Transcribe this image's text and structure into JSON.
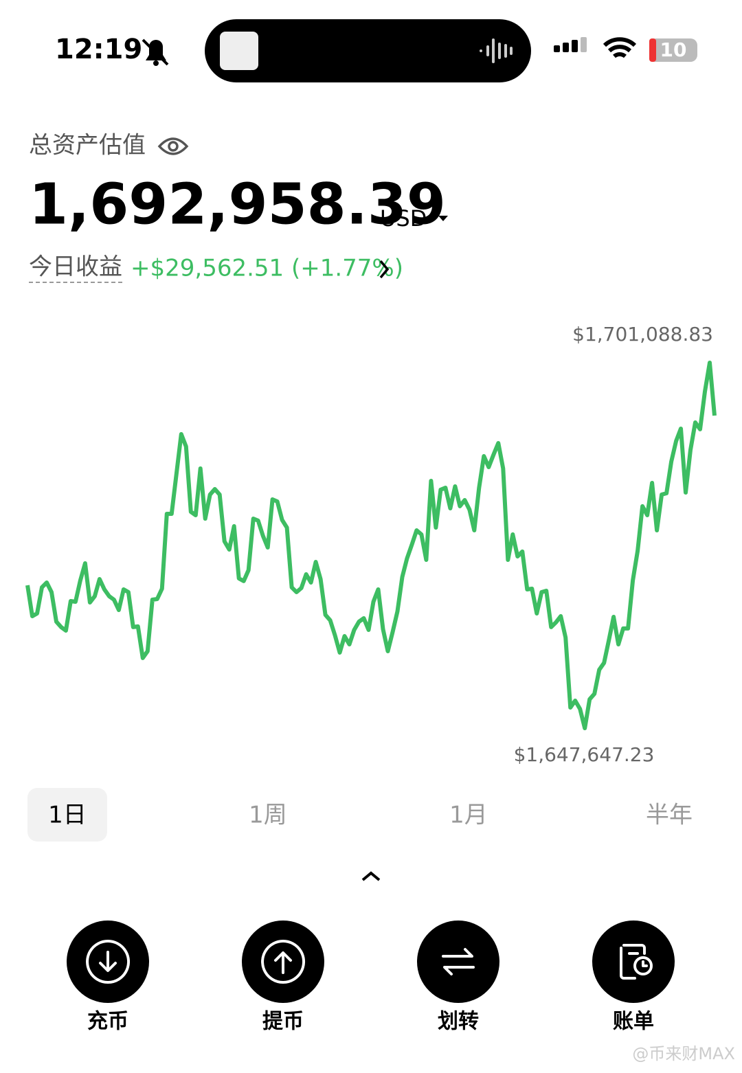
{
  "status_bar": {
    "time": "12:19",
    "battery": "10"
  },
  "header": {
    "label": "总资产估值",
    "total": "1,692,958.39",
    "currency": "USD",
    "pnl_label": "今日收益",
    "pnl": "+$29,562.51 (+1.77%)"
  },
  "chart_data": {
    "type": "line",
    "color": "#3dbd62",
    "values": [
      1668540,
      1664020,
      1664420,
      1668240,
      1668940,
      1667540,
      1663220,
      1662420,
      1661910,
      1666230,
      1666130,
      1669250,
      1671760,
      1666030,
      1666940,
      1669450,
      1667940,
      1666940,
      1666430,
      1664930,
      1667940,
      1667540,
      1662420,
      1662520,
      1657900,
      1658900,
      1666430,
      1666530,
      1668040,
      1678990,
      1678990,
      1684820,
      1690640,
      1688830,
      1679290,
      1678790,
      1685620,
      1678290,
      1681800,
      1682610,
      1681800,
      1674970,
      1673770,
      1677180,
      1669550,
      1669150,
      1670750,
      1678290,
      1677990,
      1675780,
      1674070,
      1681100,
      1680800,
      1678090,
      1676980,
      1668240,
      1667540,
      1668140,
      1670150,
      1668940,
      1671960,
      1669450,
      1664220,
      1663420,
      1661210,
      1658700,
      1661110,
      1659900,
      1662010,
      1663220,
      1663720,
      1662010,
      1666130,
      1667940,
      1662110,
      1658900,
      1661710,
      1664730,
      1669750,
      1672460,
      1674470,
      1676580,
      1675980,
      1672260,
      1683810,
      1676980,
      1682510,
      1682810,
      1679790,
      1683010,
      1680100,
      1681000,
      1679590,
      1676580,
      1682810,
      1687430,
      1685820,
      1687630,
      1689340,
      1685620,
      1672260,
      1675980,
      1672760,
      1673470,
      1667940,
      1668040,
      1664420,
      1667540,
      1667740,
      1662420,
      1663120,
      1664020,
      1660910,
      1650660,
      1651670,
      1650460,
      1647647.23,
      1651870,
      1652670,
      1656190,
      1657190,
      1660510,
      1663920,
      1659900,
      1662220,
      1662220,
      1669250,
      1673570,
      1680100,
      1678790,
      1683510,
      1676580,
      1681800,
      1682000,
      1686620,
      1689640,
      1691450,
      1682100,
      1688330,
      1692350,
      1691350,
      1696870,
      1701088.83,
      1693350
    ],
    "annotations": [
      {
        "label": "$1,701,088.83",
        "value": 1701088.83
      },
      {
        "label": "$1,647,647.23",
        "value": 1647647.23
      }
    ]
  },
  "range_tabs": {
    "items": [
      "1日",
      "1周",
      "1月",
      "半年"
    ],
    "selected": 0
  },
  "actions": [
    "充币",
    "提币",
    "划转",
    "账单"
  ],
  "watermark": "@币来财MAX"
}
